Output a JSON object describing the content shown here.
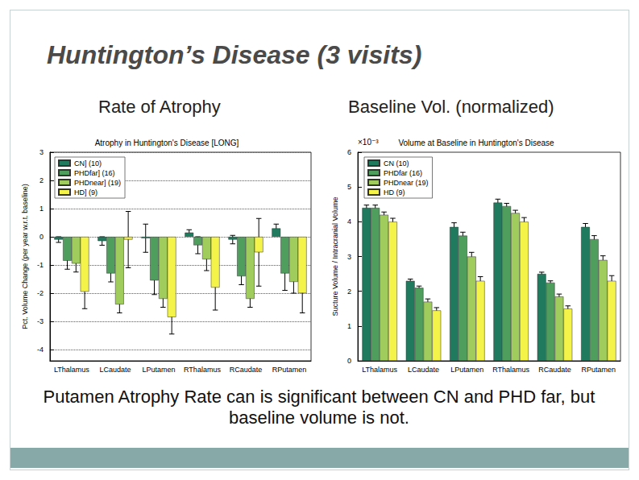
{
  "title": "Huntington’s Disease (3 visits)",
  "subtitles": [
    "Rate of Atrophy",
    "Baseline Vol. (normalized)"
  ],
  "caption": "Putamen Atrophy Rate can is significant between CN and PHD far, but baseline volume is not.",
  "chart_data": [
    {
      "type": "bar",
      "title": "Atrophy in Huntington's Disease [LONG]",
      "y_label": "Pct. Volume Change (per year w.r.t. baseline)",
      "categories": [
        "LThalamus",
        "LCaudate",
        "LPutamen",
        "RThalamus",
        "RCaudate",
        "RPutamen"
      ],
      "series": [
        {
          "name": "CN] (10)",
          "color": "#1f7a5e",
          "values": [
            -0.1,
            -0.15,
            -0.05,
            0.15,
            -0.1,
            0.3
          ],
          "errors": [
            0.1,
            0.15,
            0.5,
            0.1,
            0.15,
            0.15
          ]
        },
        {
          "name": "PHDfar] (16)",
          "color": "#4f9e5e",
          "values": [
            -0.85,
            -1.3,
            -1.55,
            -0.3,
            -1.4,
            -1.3
          ],
          "errors": [
            0.3,
            0.3,
            0.5,
            0.3,
            0.3,
            0.6
          ]
        },
        {
          "name": "PHDnear] (19)",
          "color": "#9fcc5c",
          "values": [
            -0.95,
            -2.4,
            -2.2,
            -0.8,
            -2.2,
            -1.6
          ],
          "errors": [
            0.3,
            0.3,
            0.3,
            0.4,
            0.3,
            0.4
          ]
        },
        {
          "name": "HD] (9)",
          "color": "#f4f34a",
          "values": [
            -1.95,
            -0.1,
            -2.85,
            -1.8,
            -0.55,
            -2.0
          ],
          "errors": [
            0.6,
            1.0,
            0.6,
            0.8,
            1.2,
            0.7
          ]
        }
      ],
      "ylim": [
        -4.4,
        3
      ],
      "yticks": [
        -4,
        -3,
        -2,
        -1,
        0,
        1,
        2,
        3
      ],
      "grid": true,
      "legend": "top-left"
    },
    {
      "type": "bar",
      "title": "Volume at Baseline in Huntington's Disease",
      "y_label": "Sucture Volume / Intracranial Volume",
      "annotations": [
        "×10⁻³"
      ],
      "categories": [
        "LThalamus",
        "LCaudate",
        "LPutamen",
        "RThalamus",
        "RCaudate",
        "RPutamen"
      ],
      "series": [
        {
          "name": "CN (10)",
          "color": "#1f7a5e",
          "values": [
            4.4,
            2.3,
            3.85,
            4.55,
            2.5,
            3.85
          ],
          "errors": [
            0.08,
            0.05,
            0.12,
            0.1,
            0.05,
            0.1
          ]
        },
        {
          "name": "PHDfar (16)",
          "color": "#4f9e5e",
          "values": [
            4.4,
            2.1,
            3.6,
            4.45,
            2.25,
            3.5
          ],
          "errors": [
            0.08,
            0.05,
            0.1,
            0.08,
            0.05,
            0.1
          ]
        },
        {
          "name": "PHDnear (19)",
          "color": "#9fcc5c",
          "values": [
            4.2,
            1.7,
            3.0,
            4.25,
            1.85,
            2.9
          ],
          "errors": [
            0.08,
            0.08,
            0.12,
            0.08,
            0.07,
            0.12
          ]
        },
        {
          "name": "HD (9)",
          "color": "#f4f34a",
          "values": [
            4.0,
            1.45,
            2.3,
            4.0,
            1.5,
            2.3
          ],
          "errors": [
            0.1,
            0.08,
            0.12,
            0.12,
            0.08,
            0.15
          ]
        }
      ],
      "ylim": [
        0,
        6
      ],
      "yticks": [
        0,
        1,
        2,
        3,
        4,
        5,
        6
      ],
      "grid": false,
      "legend": "top-left"
    }
  ]
}
